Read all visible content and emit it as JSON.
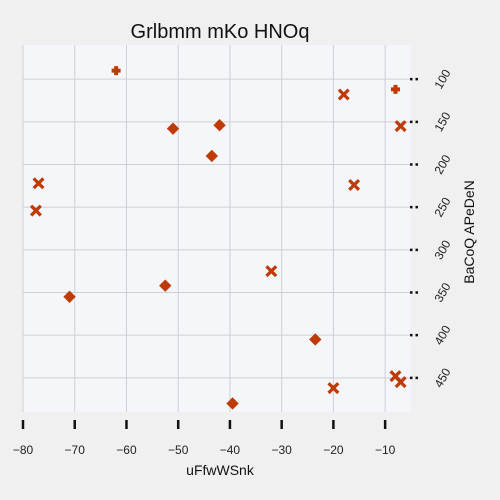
{
  "chart_data": {
    "type": "scatter",
    "title": "Grlbmm mKo HNOq",
    "xlabel": "uFfwWSnk",
    "ylabel": "BaCoQ APeDeN",
    "xlim": [
      -80,
      -5
    ],
    "ylim": [
      490,
      60
    ],
    "x_ticks": [
      -80,
      -70,
      -60,
      -50,
      -40,
      -30,
      -20,
      -10
    ],
    "y_ticks": [
      100,
      150,
      200,
      250,
      300,
      350,
      400,
      450
    ],
    "y_axis_position": "right",
    "y_tick_label_rotation": "diagonal",
    "grid": true,
    "colors": {
      "marker": "#bf3b06",
      "plot_background": "#f5f6fa",
      "figure_background": "#f0f0f0",
      "grid": "#cfcfd4"
    },
    "series": [
      {
        "marker_shape": "plus",
        "points": [
          {
            "x": -62,
            "y": 90
          },
          {
            "x": -8,
            "y": 112
          }
        ]
      },
      {
        "marker_shape": "x",
        "points": [
          {
            "x": -18,
            "y": 118
          },
          {
            "x": -7,
            "y": 155
          },
          {
            "x": -77,
            "y": 222
          },
          {
            "x": -16,
            "y": 224
          },
          {
            "x": -77.5,
            "y": 254
          },
          {
            "x": -32,
            "y": 325
          },
          {
            "x": -8,
            "y": 448
          },
          {
            "x": -20,
            "y": 462
          },
          {
            "x": -7,
            "y": 455
          }
        ]
      },
      {
        "marker_shape": "diamond",
        "points": [
          {
            "x": -51,
            "y": 158
          },
          {
            "x": -42,
            "y": 154
          },
          {
            "x": -43.5,
            "y": 190
          },
          {
            "x": -52.5,
            "y": 342
          },
          {
            "x": -71,
            "y": 355
          },
          {
            "x": -23.5,
            "y": 405
          },
          {
            "x": -39.5,
            "y": 480
          }
        ]
      }
    ]
  }
}
